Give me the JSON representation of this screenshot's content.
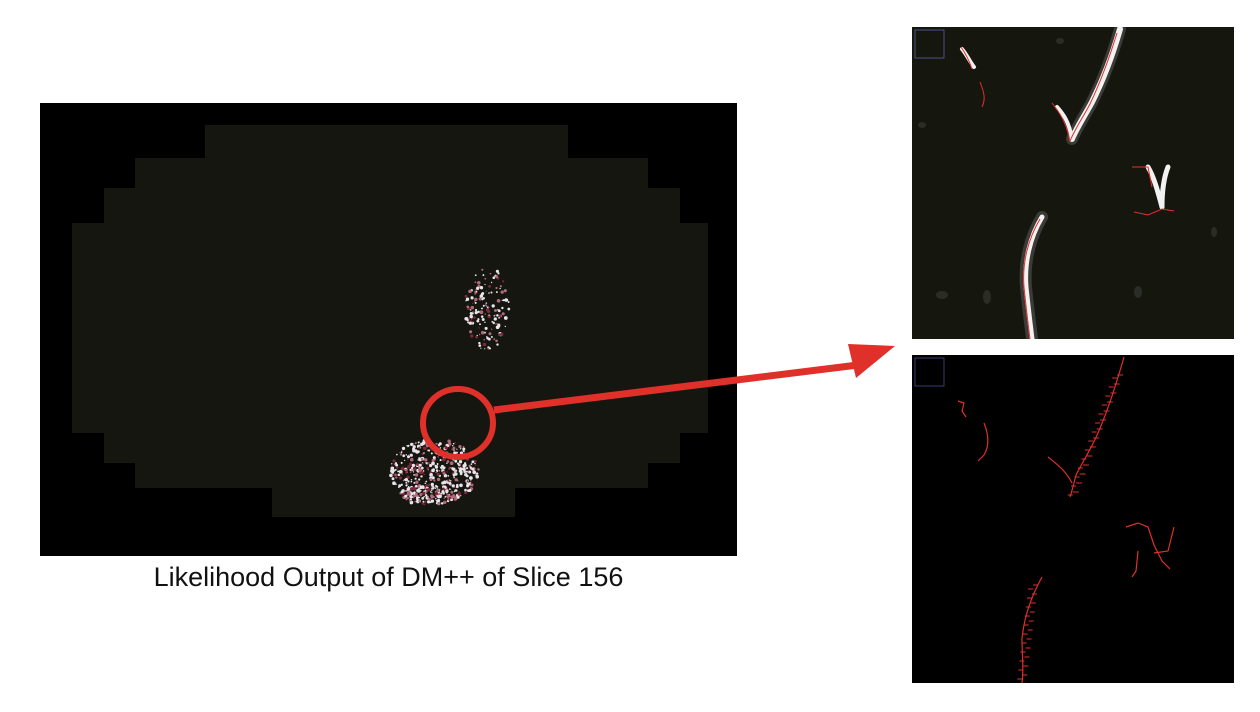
{
  "figure": {
    "caption": "Likelihood Output of DM++ of Slice 156",
    "colors": {
      "background": "#000000",
      "tissue": "#14160f",
      "tissue_border": "#1d2016",
      "highlight": "#e0302a",
      "trace": "#e0302a",
      "vessel": "#f2f2f2"
    },
    "panels": [
      "likelihood-overview",
      "zoom-likelihood-detail",
      "zoom-trace-detail"
    ]
  }
}
